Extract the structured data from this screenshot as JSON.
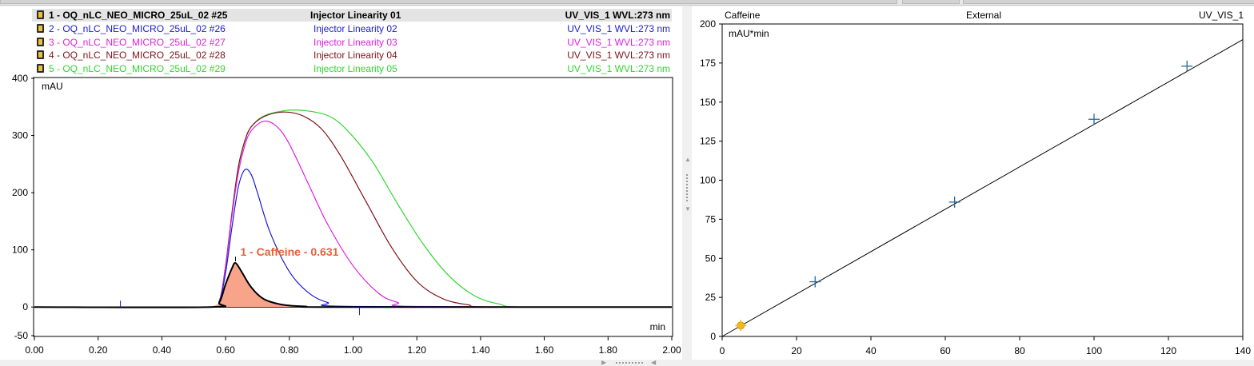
{
  "window": {
    "panes": [
      "chromatogram-overlay",
      "calibration-plot"
    ]
  },
  "chromatogram": {
    "legend": [
      {
        "index_label": "1 - OQ_nLC_NEO_MICRO_25uL_02 #25",
        "injection": "Injector Linearity 01",
        "channel": "UV_VIS_1 WVL:273 nm",
        "color": "#000000",
        "selected": true
      },
      {
        "index_label": "2 - OQ_nLC_NEO_MICRO_25uL_02 #26",
        "injection": "Injector Linearity 02",
        "channel": "UV_VIS_1 WVL:273 nm",
        "color": "#1a1ad6",
        "selected": false
      },
      {
        "index_label": "3 - OQ_nLC_NEO_MICRO_25uL_02 #27",
        "injection": "Injector Linearity 03",
        "channel": "UV_VIS_1 WVL:273 nm",
        "color": "#e020e0",
        "selected": false
      },
      {
        "index_label": "4 - OQ_nLC_NEO_MICRO_25uL_02 #28",
        "injection": "Injector Linearity 04",
        "channel": "UV_VIS_1 WVL:273 nm",
        "color": "#7a1518",
        "selected": false
      },
      {
        "index_label": "5 - OQ_nLC_NEO_MICRO_25uL_02 #29",
        "injection": "Injector Linearity 05",
        "channel": "UV_VIS_1 WVL:273 nm",
        "color": "#2fd62f",
        "selected": false
      }
    ],
    "unit_label": "mAU",
    "axis_unit_label": "min",
    "peak_label": "1 - Caffeine - 0.631",
    "peak_label_color": "#e8603a",
    "peak_fill_color": "#f7a48a"
  },
  "calibration": {
    "header_left": "Caffeine",
    "header_center": "External",
    "header_right": "UV_VIS_1",
    "unit_label": "mAU*min",
    "marker_color": "#2a6a9a",
    "highlight_color": "#f2b820"
  },
  "chart_data": [
    {
      "type": "line",
      "xlim": [
        0,
        2.0
      ],
      "ylim": [
        -50,
        400
      ],
      "x_ticks": [
        "0.00",
        "0.20",
        "0.40",
        "0.60",
        "0.80",
        "1.00",
        "1.20",
        "1.40",
        "1.60",
        "1.80",
        "2.00"
      ],
      "y_ticks": [
        "-50",
        "0",
        "100",
        "200",
        "300",
        "400"
      ],
      "x_tick_values": [
        0,
        0.2,
        0.4,
        0.6,
        0.8,
        1.0,
        1.2,
        1.4,
        1.6,
        1.8,
        2.0
      ],
      "y_tick_values": [
        -50,
        0,
        100,
        200,
        300,
        400
      ],
      "ylabel": "mAU",
      "xlabel": "min",
      "series": [
        {
          "color": "#000000",
          "x": [
            0.0,
            0.55,
            0.58,
            0.6,
            0.62,
            0.631,
            0.65,
            0.68,
            0.72,
            0.78,
            0.85,
            0.95,
            2.0
          ],
          "y": [
            0,
            0,
            8,
            40,
            68,
            77,
            62,
            35,
            14,
            4,
            1,
            0,
            0
          ]
        },
        {
          "color": "#1a1ad6",
          "x": [
            0.0,
            0.55,
            0.58,
            0.6,
            0.62,
            0.64,
            0.66,
            0.68,
            0.7,
            0.74,
            0.8,
            0.86,
            0.92,
            1.0,
            2.0
          ],
          "y": [
            0,
            0,
            10,
            60,
            140,
            210,
            240,
            232,
            200,
            130,
            62,
            25,
            8,
            1,
            0
          ]
        },
        {
          "color": "#e020e0",
          "x": [
            0.0,
            0.55,
            0.58,
            0.6,
            0.62,
            0.64,
            0.66,
            0.68,
            0.72,
            0.76,
            0.8,
            0.86,
            0.92,
            1.0,
            1.08,
            1.14,
            1.2,
            2.0
          ],
          "y": [
            0,
            0,
            10,
            70,
            160,
            235,
            282,
            308,
            325,
            316,
            285,
            215,
            145,
            72,
            24,
            8,
            1,
            0
          ]
        },
        {
          "color": "#7a1518",
          "x": [
            0.0,
            0.55,
            0.58,
            0.6,
            0.62,
            0.64,
            0.66,
            0.68,
            0.72,
            0.78,
            0.84,
            0.9,
            0.96,
            1.04,
            1.12,
            1.2,
            1.28,
            1.36,
            1.44,
            2.0
          ],
          "y": [
            0,
            0,
            10,
            72,
            165,
            245,
            290,
            315,
            333,
            341,
            335,
            312,
            265,
            185,
            105,
            45,
            15,
            4,
            0,
            0
          ]
        },
        {
          "color": "#2fd62f",
          "x": [
            0.0,
            0.55,
            0.58,
            0.6,
            0.62,
            0.64,
            0.66,
            0.68,
            0.72,
            0.78,
            0.84,
            0.92,
            0.98,
            1.06,
            1.14,
            1.22,
            1.3,
            1.38,
            1.46,
            1.54,
            2.0
          ],
          "y": [
            0,
            0,
            10,
            72,
            165,
            245,
            290,
            315,
            334,
            343,
            344,
            335,
            310,
            255,
            180,
            110,
            55,
            20,
            5,
            0,
            0
          ]
        }
      ],
      "peak": {
        "x": 0.631,
        "y": 77,
        "label": "1 - Caffeine - 0.631"
      },
      "integration_markers": [
        {
          "x": 0.27
        },
        {
          "x": 1.02
        }
      ]
    },
    {
      "type": "scatter",
      "title": "Caffeine",
      "xlim": [
        0,
        140
      ],
      "ylim": [
        0,
        200
      ],
      "x_ticks": [
        "0",
        "20",
        "40",
        "60",
        "80",
        "100",
        "120",
        "140"
      ],
      "y_ticks": [
        "0",
        "25",
        "50",
        "75",
        "100",
        "125",
        "150",
        "175",
        "200"
      ],
      "x_tick_values": [
        0,
        20,
        40,
        60,
        80,
        100,
        120,
        140
      ],
      "y_tick_values": [
        0,
        25,
        50,
        75,
        100,
        125,
        150,
        175,
        200
      ],
      "ylabel": "mAU*min",
      "points": [
        {
          "x": 25,
          "y": 35
        },
        {
          "x": 62.5,
          "y": 86
        },
        {
          "x": 100,
          "y": 139
        },
        {
          "x": 125,
          "y": 173
        }
      ],
      "highlight_point": {
        "x": 5,
        "y": 7
      },
      "fit_line": {
        "x": [
          0,
          140
        ],
        "y": [
          0,
          190
        ]
      }
    }
  ]
}
